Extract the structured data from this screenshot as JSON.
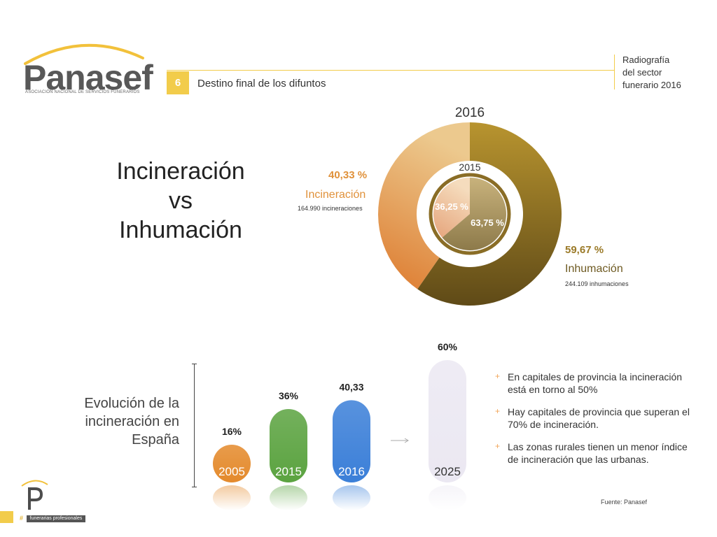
{
  "brand": {
    "logo_text": "Panasef",
    "logo_subtitle": "ASOCIACIÓN NACIONAL DE SERVICIOS FUNERARIOS",
    "accent_color": "#f2cc4b"
  },
  "header": {
    "section_number": "6",
    "section_title": "Destino final de los difuntos",
    "report_title_lines": [
      "Radiografía",
      "del sector",
      "funerario 2016"
    ]
  },
  "main_title_lines": [
    "Incineración",
    "vs",
    "Inhumación"
  ],
  "donut_labels": {
    "incineracion": {
      "pct": "40,33 %",
      "name": "Incineración",
      "count": "164.990 incineraciones",
      "color": "#e0913a"
    },
    "inhumacion": {
      "pct": "59,67 %",
      "name": "Inhumación",
      "count": "244.109 inhumaciones",
      "color": "#9b7a28"
    }
  },
  "evolution": {
    "title_lines": [
      "Evolución de la",
      "incineración en",
      "España"
    ]
  },
  "bullets": [
    "En capitales de provincia la incineración está en torno al 50%",
    "Hay capitales de provincia que superan el 70% de incineración.",
    "Las zonas rurales tienen un menor índice de incineración que las urbanas."
  ],
  "source": "Fuente: Panasef",
  "footer": {
    "hash": "#",
    "tag": "funerarias profesionales"
  },
  "chart_data": [
    {
      "type": "pie",
      "title": "2016",
      "categories": [
        "Incineración",
        "Inhumación"
      ],
      "values": [
        40.33,
        59.67
      ],
      "labels": [
        "40,33 %",
        "59,67 %"
      ],
      "colors": [
        "#e49a4a",
        "#8a6d26"
      ]
    },
    {
      "type": "pie",
      "title": "2015",
      "categories": [
        "Incineración",
        "Inhumación"
      ],
      "values": [
        36.25,
        63.75
      ],
      "labels": [
        "36,25 %",
        "63,75 %"
      ],
      "colors": [
        "#ebb07e",
        "#a88f4d"
      ]
    },
    {
      "type": "bar",
      "categories": [
        "2005",
        "2015",
        "2016",
        "2025"
      ],
      "values": [
        16,
        36,
        40.33,
        60
      ],
      "labels": [
        "16%",
        "36%",
        "40,33",
        "60%"
      ],
      "colors": [
        "#e48a2c",
        "#5ba340",
        "#3b7fd8",
        "#ebe8f2"
      ],
      "ylim": [
        0,
        60
      ]
    }
  ]
}
